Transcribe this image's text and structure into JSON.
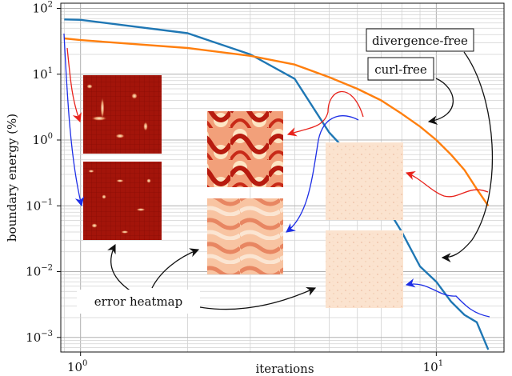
{
  "chart_data": {
    "type": "line",
    "xlabel": "iterations",
    "ylabel": "boundary energy (%)",
    "x_scale": "log",
    "y_scale": "log",
    "xlim": [
      0.88,
      15.5
    ],
    "ylim": [
      0.0006,
      120
    ],
    "grid": true,
    "x_ticks": [
      {
        "value": 1,
        "label": "10",
        "exp": "0"
      },
      {
        "value": 10,
        "label": "10",
        "exp": "1"
      }
    ],
    "y_ticks": [
      {
        "value": 100,
        "label": "10",
        "exp": "2"
      },
      {
        "value": 10,
        "label": "10",
        "exp": "1"
      },
      {
        "value": 1,
        "label": "10",
        "exp": "0"
      },
      {
        "value": 0.1,
        "label": "10",
        "exp": "−1"
      },
      {
        "value": 0.01,
        "label": "10",
        "exp": "−2"
      },
      {
        "value": 0.001,
        "label": "10",
        "exp": "−3"
      }
    ],
    "series": [
      {
        "name": "divergence-free",
        "color": "#1f77b4",
        "x": [
          0.9,
          1,
          2,
          3,
          4,
          5,
          6,
          7,
          8,
          9,
          10,
          11,
          12,
          13,
          14
        ],
        "y": [
          68,
          67,
          42,
          20,
          8.5,
          1.3,
          0.45,
          0.13,
          0.04,
          0.012,
          0.007,
          0.0035,
          0.0022,
          0.0017,
          0.00065
        ]
      },
      {
        "name": "curl-free",
        "color": "#ff7f0e",
        "x": [
          0.9,
          1,
          2,
          3,
          4,
          5,
          6,
          7,
          8,
          9,
          10,
          11,
          12,
          13,
          14
        ],
        "y": [
          35,
          33,
          25,
          19,
          14,
          9,
          6,
          4,
          2.5,
          1.6,
          1.0,
          0.6,
          0.35,
          0.18,
          0.1
        ]
      }
    ],
    "annotations": {
      "label_divergence": "divergence-free",
      "label_curl": "curl-free",
      "label_heatmap": "error heatmap"
    }
  }
}
